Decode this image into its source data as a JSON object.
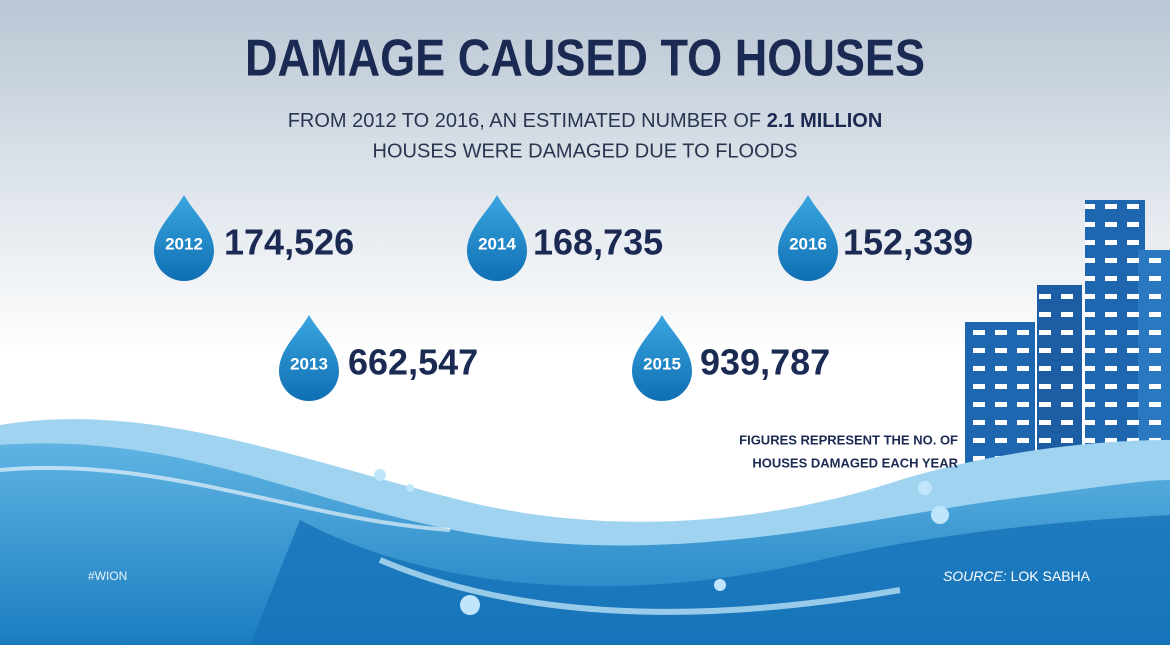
{
  "title": "DAMAGE CAUSED TO HOUSES",
  "subtitle": {
    "line1_start": "FROM 2012 TO 2016, AN ESTIMATED NUMBER OF",
    "line1_bold": "2.1 MILLION",
    "line2": "HOUSES WERE DAMAGED DUE TO FLOODS"
  },
  "items": [
    {
      "year": "2012",
      "value": "174,526"
    },
    {
      "year": "2014",
      "value": "168,735"
    },
    {
      "year": "2016",
      "value": "152,339"
    },
    {
      "year": "2013",
      "value": "662,547"
    },
    {
      "year": "2015",
      "value": "939,787"
    }
  ],
  "note": [
    "FIGURES REPRESENT THE NO. OF",
    "HOUSES DAMAGED EACH YEAR"
  ],
  "hashtag": "#WION",
  "source": {
    "label": "SOURCE:",
    "text": "LOK SABHA"
  }
}
